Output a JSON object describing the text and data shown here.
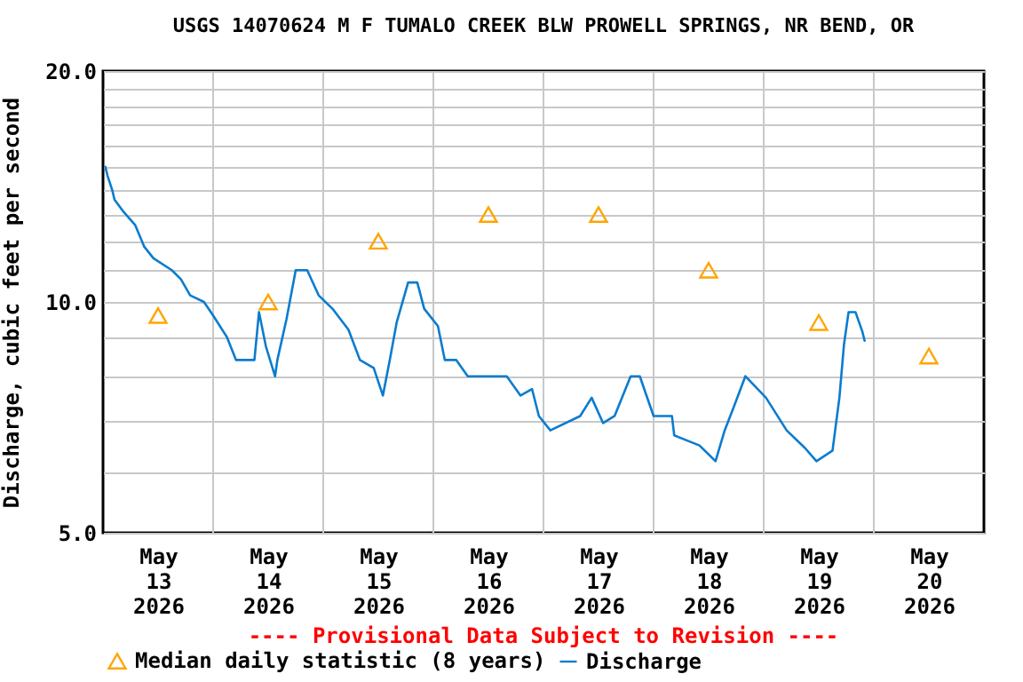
{
  "chart_data": {
    "type": "line",
    "title": "USGS 14070624 M F TUMALO CREEK BLW PROWELL SPRINGS, NR BEND, OR",
    "ylabel": "Discharge, cubic feet per second",
    "annotations": [
      "---- Provisional Data Subject to Revision ----"
    ],
    "xlim": [
      "2026-05-13T00:00",
      "2026-05-21T00:00"
    ],
    "xticks": [
      {
        "value": "2026-05-14T00:00",
        "label": null
      },
      {
        "value": "2026-05-15T00:00",
        "label": null
      },
      {
        "value": "2026-05-16T00:00",
        "label": null
      },
      {
        "value": "2026-05-17T00:00",
        "label": null
      },
      {
        "value": "2026-05-18T00:00",
        "label": null
      },
      {
        "value": "2026-05-19T00:00",
        "label": null
      },
      {
        "value": "2026-05-20T00:00",
        "label": null
      },
      {
        "value": "2026-05-13T12:00",
        "label": "May 13 2026"
      },
      {
        "value": "2026-05-14T12:00",
        "label": "May 14 2026"
      },
      {
        "value": "2026-05-15T12:00",
        "label": "May 15 2026"
      },
      {
        "value": "2026-05-16T12:00",
        "label": "May 16 2026"
      },
      {
        "value": "2026-05-17T12:00",
        "label": "May 17 2026"
      },
      {
        "value": "2026-05-18T12:00",
        "label": "May 18 2026"
      },
      {
        "value": "2026-05-19T12:00",
        "label": "May 19 2026"
      },
      {
        "value": "2026-05-20T12:00",
        "label": "May 20 2026"
      }
    ],
    "ylim": [
      5,
      20
    ],
    "yticks": [
      {
        "value": 5,
        "label": "5.0"
      },
      {
        "value": 6,
        "label": null
      },
      {
        "value": 7,
        "label": null
      },
      {
        "value": 8,
        "label": null
      },
      {
        "value": 9,
        "label": null
      },
      {
        "value": 10,
        "label": "10.0"
      },
      {
        "value": 11,
        "label": null
      },
      {
        "value": 12,
        "label": null
      },
      {
        "value": 13,
        "label": null
      },
      {
        "value": 14,
        "label": null
      },
      {
        "value": 15,
        "label": null
      },
      {
        "value": 16,
        "label": null
      },
      {
        "value": 17,
        "label": null
      },
      {
        "value": 18,
        "label": null
      },
      {
        "value": 19,
        "label": null
      },
      {
        "value": 20,
        "label": "20.0"
      }
    ],
    "log": "y",
    "grid": true,
    "legend": "bottom",
    "series": [
      {
        "name": "Median daily statistic (8 years)",
        "type": "scatter",
        "marker": "triangle",
        "color": "#ffa500",
        "x": [
          "2026-05-13T12:00",
          "2026-05-14T12:00",
          "2026-05-15T12:00",
          "2026-05-16T12:00",
          "2026-05-17T12:00",
          "2026-05-18T12:00",
          "2026-05-19T12:00",
          "2026-05-20T12:00"
        ],
        "values": [
          9.6,
          10.0,
          12.0,
          13.0,
          13.0,
          11.0,
          9.4,
          8.5
        ]
      },
      {
        "name": "Discharge",
        "type": "line",
        "color": "#0a7ccf",
        "x": [
          "2026-05-13T00:30",
          "2026-05-13T01:00",
          "2026-05-13T02:00",
          "2026-05-13T02:30",
          "2026-05-13T04:30",
          "2026-05-13T07:00",
          "2026-05-13T09:00",
          "2026-05-13T11:00",
          "2026-05-13T15:00",
          "2026-05-13T17:00",
          "2026-05-13T19:00",
          "2026-05-13T22:00",
          "2026-05-14T00:00",
          "2026-05-14T03:00",
          "2026-05-14T05:00",
          "2026-05-14T09:00",
          "2026-05-14T10:00",
          "2026-05-14T11:30",
          "2026-05-14T13:30",
          "2026-05-14T14:00",
          "2026-05-14T16:00",
          "2026-05-14T18:00",
          "2026-05-14T20:30",
          "2026-05-14T23:00",
          "2026-05-15T02:00",
          "2026-05-15T05:30",
          "2026-05-15T08:00",
          "2026-05-15T11:00",
          "2026-05-15T13:00",
          "2026-05-15T14:30",
          "2026-05-15T16:00",
          "2026-05-15T18:30",
          "2026-05-15T20:30",
          "2026-05-15T22:00",
          "2026-05-16T01:00",
          "2026-05-16T02:30",
          "2026-05-16T05:00",
          "2026-05-16T07:30",
          "2026-05-16T16:00",
          "2026-05-16T19:00",
          "2026-05-16T21:30",
          "2026-05-16T23:00",
          "2026-05-17T01:30",
          "2026-05-17T08:00",
          "2026-05-17T10:30",
          "2026-05-17T13:00",
          "2026-05-17T15:30",
          "2026-05-17T19:00",
          "2026-05-17T21:00",
          "2026-05-18T00:00",
          "2026-05-18T04:00",
          "2026-05-18T04:30",
          "2026-05-18T10:00",
          "2026-05-18T13:30",
          "2026-05-18T15:30",
          "2026-05-18T17:30",
          "2026-05-18T20:00",
          "2026-05-19T00:30",
          "2026-05-19T05:00",
          "2026-05-19T09:00",
          "2026-05-19T11:30",
          "2026-05-19T15:00",
          "2026-05-19T16:30",
          "2026-05-19T17:30",
          "2026-05-19T18:30",
          "2026-05-19T20:00",
          "2026-05-19T21:30",
          "2026-05-19T22:00"
        ],
        "values": [
          15.0,
          14.6,
          14.0,
          13.6,
          13.1,
          12.6,
          11.8,
          11.4,
          11.0,
          10.7,
          10.2,
          10.0,
          9.6,
          9.0,
          8.4,
          8.4,
          9.7,
          8.75,
          8.0,
          8.4,
          9.5,
          11.0,
          11.0,
          10.2,
          9.8,
          9.2,
          8.4,
          8.2,
          7.55,
          8.4,
          9.4,
          10.6,
          10.6,
          9.8,
          9.3,
          8.4,
          8.4,
          8.0,
          8.0,
          7.55,
          7.7,
          7.1,
          6.8,
          7.1,
          7.5,
          6.95,
          7.1,
          8.0,
          8.0,
          7.1,
          7.1,
          6.7,
          6.5,
          6.2,
          6.8,
          7.3,
          8.0,
          7.5,
          6.8,
          6.45,
          6.2,
          6.4,
          7.5,
          8.8,
          9.7,
          9.7,
          9.15,
          8.9
        ]
      }
    ]
  }
}
